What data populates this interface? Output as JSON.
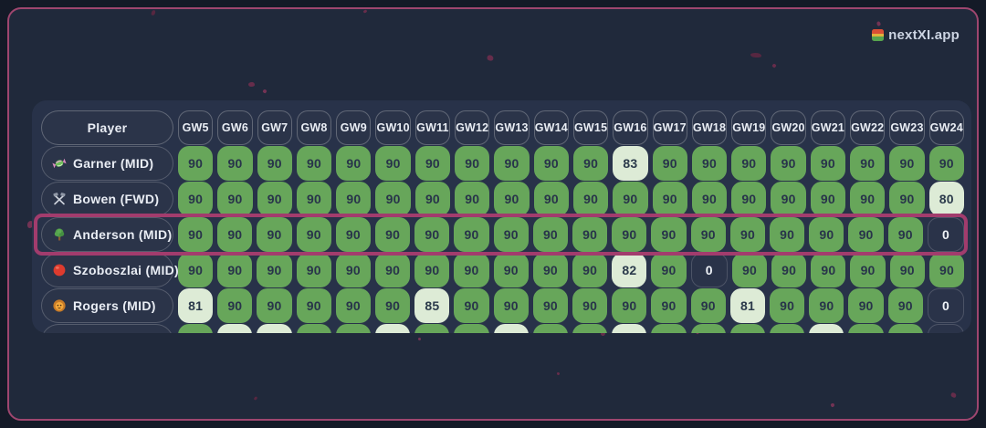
{
  "app": {
    "brand": "nextXI.app",
    "brand_icon": "calendar-icon"
  },
  "colors": {
    "background": "#20293b",
    "frame_border": "#9e466f",
    "panel": "#283249",
    "cell_green": "#67a65a",
    "cell_pale": "#ddebd6",
    "cell_dark": "#2a3349",
    "highlight_border": "#a23c6d"
  },
  "table": {
    "player_header": "Player",
    "gw_headers": [
      "GW5",
      "GW6",
      "GW7",
      "GW8",
      "GW9",
      "GW10",
      "GW11",
      "GW12",
      "GW13",
      "GW14",
      "GW15",
      "GW16",
      "GW17",
      "GW18",
      "GW19",
      "GW20",
      "GW21",
      "GW22",
      "GW23",
      "GW24"
    ],
    "rows": [
      {
        "icon_name": "candy-icon",
        "icon_char": "🍬",
        "name": "Garner (MID)",
        "highlighted": false,
        "values": [
          90,
          90,
          90,
          90,
          90,
          90,
          90,
          90,
          90,
          90,
          90,
          83,
          90,
          90,
          90,
          90,
          90,
          90,
          90,
          90
        ]
      },
      {
        "icon_name": "crossed-hammers-icon",
        "icon_char": "⚒️",
        "name": "Bowen (FWD)",
        "highlighted": false,
        "values": [
          90,
          90,
          90,
          90,
          90,
          90,
          90,
          90,
          90,
          90,
          90,
          90,
          90,
          90,
          90,
          90,
          90,
          90,
          90,
          80
        ]
      },
      {
        "icon_name": "tree-icon",
        "icon_char": "🌳",
        "name": "Anderson (MID)",
        "highlighted": true,
        "values": [
          90,
          90,
          90,
          90,
          90,
          90,
          90,
          90,
          90,
          90,
          90,
          90,
          90,
          90,
          90,
          90,
          90,
          90,
          90,
          0
        ]
      },
      {
        "icon_name": "red-circle-icon",
        "icon_char": "🔴",
        "name": "Szoboszlai (MID)",
        "highlighted": false,
        "values": [
          90,
          90,
          90,
          90,
          90,
          90,
          90,
          90,
          90,
          90,
          90,
          82,
          90,
          0,
          90,
          90,
          90,
          90,
          90,
          90
        ]
      },
      {
        "icon_name": "lion-icon",
        "icon_char": "🦁",
        "name": "Rogers (MID)",
        "highlighted": false,
        "values": [
          81,
          90,
          90,
          90,
          90,
          90,
          85,
          90,
          90,
          90,
          90,
          90,
          90,
          90,
          81,
          90,
          90,
          90,
          90,
          0
        ]
      }
    ],
    "partial_row_tones": [
      "g",
      "p",
      "p",
      "g",
      "g",
      "p",
      "g",
      "g",
      "p",
      "g",
      "g",
      "p",
      "g",
      "g",
      "g",
      "g",
      "p",
      "g",
      "g",
      "d"
    ]
  }
}
